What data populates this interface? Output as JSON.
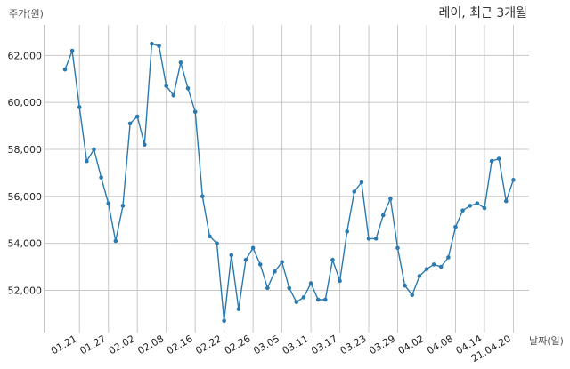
{
  "chart_data": {
    "type": "line",
    "title": "레이, 최근 3개월",
    "xlabel": "날짜(일)",
    "ylabel": "주가(원)",
    "ylim": [
      50200,
      63300
    ],
    "grid": true,
    "line_color": "#2a7ab0",
    "x_ticks": [
      {
        "index": 2,
        "label": "01.21"
      },
      {
        "index": 6,
        "label": "01.27"
      },
      {
        "index": 10,
        "label": "02.02"
      },
      {
        "index": 14,
        "label": "02.08"
      },
      {
        "index": 18,
        "label": "02.16"
      },
      {
        "index": 22,
        "label": "02.22"
      },
      {
        "index": 26,
        "label": "02.26"
      },
      {
        "index": 30,
        "label": "03.05"
      },
      {
        "index": 34,
        "label": "03.11"
      },
      {
        "index": 38,
        "label": "03.17"
      },
      {
        "index": 42,
        "label": "03.23"
      },
      {
        "index": 46,
        "label": "03.29"
      },
      {
        "index": 50,
        "label": "04.02"
      },
      {
        "index": 54,
        "label": "04.08"
      },
      {
        "index": 58,
        "label": "04.14"
      },
      {
        "index": 62,
        "label": "21.04.20"
      }
    ],
    "y_ticks": [
      {
        "value": 52000,
        "label": "52,000"
      },
      {
        "value": 54000,
        "label": "54,000"
      },
      {
        "value": 56000,
        "label": "56,000"
      },
      {
        "value": 58000,
        "label": "58,000"
      },
      {
        "value": 60000,
        "label": "60,000"
      },
      {
        "value": 62000,
        "label": "62,000"
      }
    ],
    "series": [
      {
        "values": [
          61400,
          62200,
          59800,
          57500,
          58000,
          56800,
          55700,
          54100,
          55600,
          59100,
          59400,
          58200,
          62500,
          62400,
          60700,
          60300,
          61700,
          60600,
          59600,
          56000,
          54300,
          54000,
          50700,
          53500,
          51200,
          53300,
          53800,
          53100,
          52100,
          52800,
          53200,
          52100,
          51500,
          51700,
          52300,
          51600,
          51600,
          53300,
          52400,
          54500,
          56200,
          56600,
          54200,
          54200,
          55200,
          55900,
          53800,
          52200,
          51800,
          52600,
          52900,
          53100,
          53000,
          53400,
          54700,
          55400,
          55600,
          55700,
          55500,
          57500,
          57600,
          55800,
          56700
        ]
      }
    ]
  }
}
